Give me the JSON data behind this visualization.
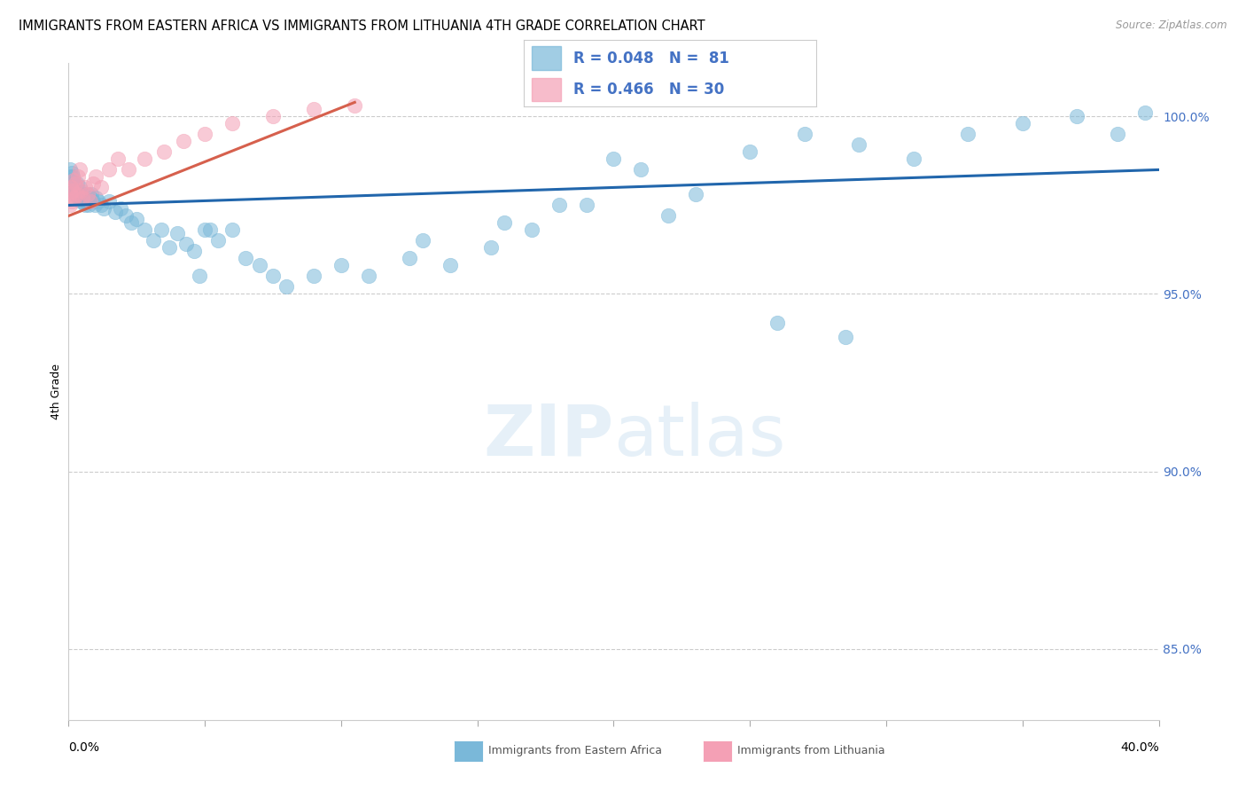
{
  "title": "IMMIGRANTS FROM EASTERN AFRICA VS IMMIGRANTS FROM LITHUANIA 4TH GRADE CORRELATION CHART",
  "source": "Source: ZipAtlas.com",
  "ylabel": "4th Grade",
  "x_min": 0.0,
  "x_max": 40.0,
  "y_min": 83.0,
  "y_max": 101.5,
  "y_ticks": [
    85.0,
    90.0,
    95.0,
    100.0
  ],
  "y_tick_labels": [
    "85.0%",
    "90.0%",
    "95.0%",
    "100.0%"
  ],
  "blue_color": "#7ab8d9",
  "pink_color": "#f4a0b5",
  "blue_line_color": "#2166ac",
  "pink_line_color": "#d6604d",
  "legend_R_blue": "0.048",
  "legend_N_blue": "81",
  "legend_R_pink": "0.466",
  "legend_N_pink": "30",
  "background_color": "#ffffff",
  "grid_color": "#cccccc",
  "blue_scatter_x": [
    0.05,
    0.08,
    0.1,
    0.12,
    0.14,
    0.16,
    0.18,
    0.2,
    0.22,
    0.25,
    0.28,
    0.3,
    0.33,
    0.35,
    0.38,
    0.4,
    0.43,
    0.45,
    0.48,
    0.5,
    0.55,
    0.6,
    0.65,
    0.7,
    0.75,
    0.8,
    0.85,
    0.9,
    0.95,
    1.0,
    1.1,
    1.2,
    1.3,
    1.5,
    1.7,
    1.9,
    2.1,
    2.3,
    2.5,
    2.8,
    3.1,
    3.4,
    3.7,
    4.0,
    4.3,
    4.6,
    5.0,
    5.5,
    6.0,
    6.5,
    7.0,
    7.5,
    8.0,
    9.0,
    10.0,
    11.0,
    12.5,
    14.0,
    15.5,
    17.0,
    19.0,
    21.0,
    23.0,
    25.0,
    27.0,
    29.0,
    31.0,
    33.0,
    35.0,
    37.0,
    38.5,
    39.5,
    26.0,
    28.5,
    20.0,
    22.0,
    16.0,
    18.0,
    13.0,
    4.8,
    5.2
  ],
  "blue_scatter_y": [
    98.5,
    98.3,
    98.2,
    98.4,
    98.1,
    98.3,
    97.9,
    98.1,
    97.8,
    98.0,
    97.9,
    98.1,
    97.8,
    97.7,
    97.9,
    98.0,
    97.7,
    97.6,
    97.8,
    97.6,
    97.7,
    97.5,
    97.6,
    97.8,
    97.5,
    97.7,
    97.8,
    97.6,
    97.5,
    97.7,
    97.6,
    97.5,
    97.4,
    97.6,
    97.3,
    97.4,
    97.2,
    97.0,
    97.1,
    96.8,
    96.5,
    96.8,
    96.3,
    96.7,
    96.4,
    96.2,
    96.8,
    96.5,
    96.8,
    96.0,
    95.8,
    95.5,
    95.2,
    95.5,
    95.8,
    95.5,
    96.0,
    95.8,
    96.3,
    96.8,
    97.5,
    98.5,
    97.8,
    99.0,
    99.5,
    99.2,
    98.8,
    99.5,
    99.8,
    100.0,
    99.5,
    100.1,
    94.2,
    93.8,
    98.8,
    97.2,
    97.0,
    97.5,
    96.5,
    95.5,
    96.8
  ],
  "pink_scatter_x": [
    0.04,
    0.07,
    0.1,
    0.13,
    0.16,
    0.19,
    0.22,
    0.25,
    0.3,
    0.35,
    0.4,
    0.45,
    0.5,
    0.6,
    0.7,
    0.8,
    0.9,
    1.0,
    1.2,
    1.5,
    1.8,
    2.2,
    2.8,
    3.5,
    4.2,
    5.0,
    6.0,
    7.5,
    9.0,
    10.5
  ],
  "pink_scatter_y": [
    97.5,
    97.8,
    98.0,
    97.6,
    97.9,
    98.2,
    97.7,
    98.1,
    97.8,
    98.3,
    98.5,
    97.9,
    97.7,
    98.0,
    97.8,
    97.6,
    98.1,
    98.3,
    98.0,
    98.5,
    98.8,
    98.5,
    98.8,
    99.0,
    99.3,
    99.5,
    99.8,
    100.0,
    100.2,
    100.3
  ],
  "blue_trend_x": [
    0.0,
    40.0
  ],
  "blue_trend_y": [
    97.5,
    98.5
  ],
  "pink_trend_x": [
    0.0,
    10.5
  ],
  "pink_trend_y": [
    97.2,
    100.4
  ],
  "watermark_zip_color": "#c8dff0",
  "watermark_atlas_color": "#c8dff0",
  "title_fontsize": 10.5,
  "axis_label_fontsize": 9,
  "tick_fontsize": 10,
  "legend_fontsize": 12
}
